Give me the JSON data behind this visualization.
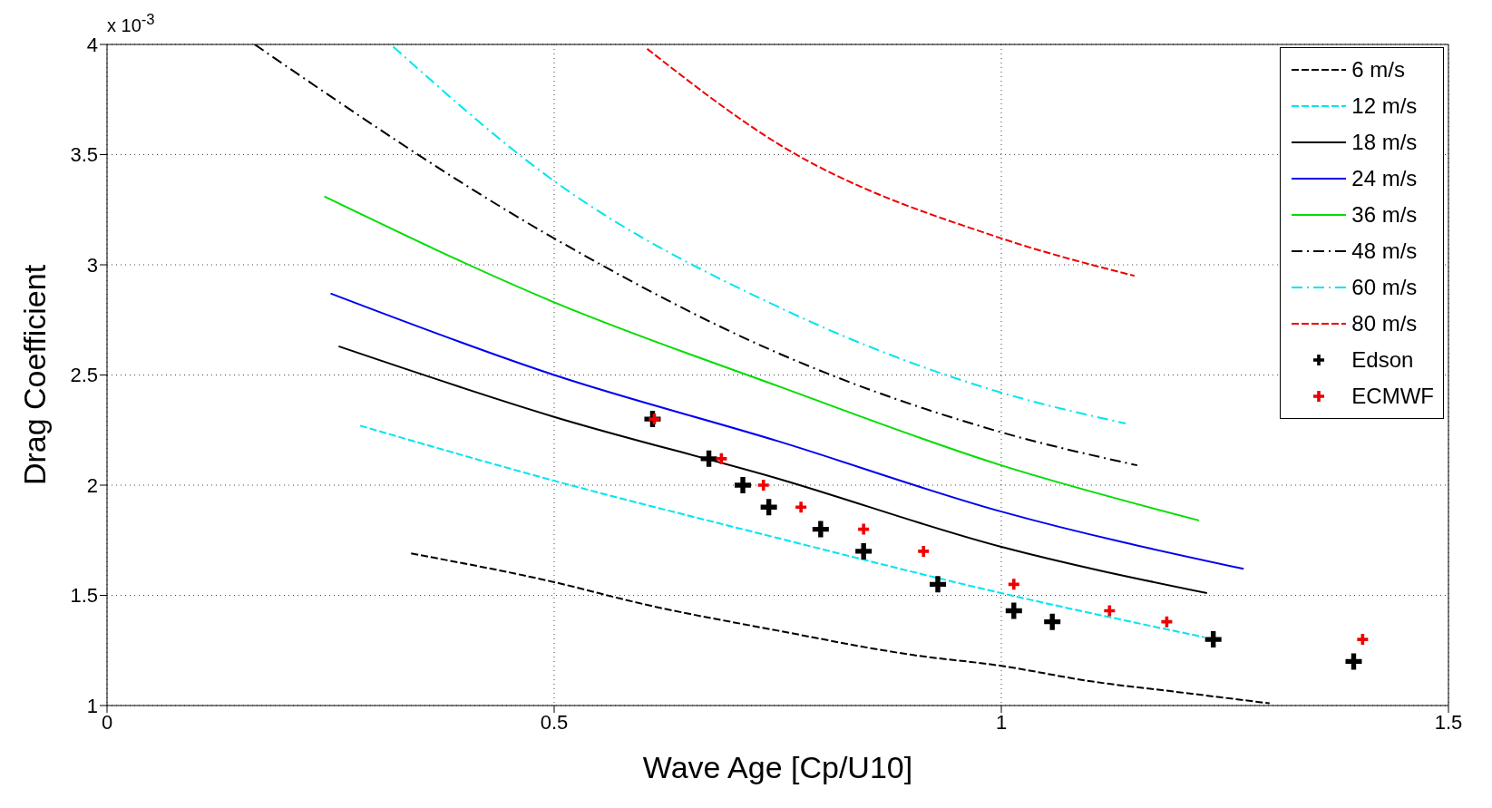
{
  "chart_data": {
    "type": "line",
    "xlabel": "Wave Age [Cp/U10]",
    "ylabel": "Drag Coefficient",
    "annotations": [
      "x 10$^{-3}$"
    ],
    "xlim": [
      0,
      1.5
    ],
    "xticks": [
      0,
      0.5,
      1,
      1.5
    ],
    "ylim": [
      1,
      4
    ],
    "yticks": [
      1,
      1.5,
      2,
      2.5,
      3,
      3.5,
      4
    ],
    "grid": true,
    "legend": "top right",
    "marker": "none",
    "series": [
      {
        "name": "6 m/s",
        "color": "#000000",
        "line_style": "dashed",
        "x": [
          0.34,
          0.5,
          0.6,
          0.75,
          0.9,
          1.0,
          1.1,
          1.2,
          1.3
        ],
        "values": [
          1.69,
          1.56,
          1.46,
          1.34,
          1.23,
          1.18,
          1.11,
          1.06,
          1.01
        ]
      },
      {
        "name": "12 m/s",
        "color": "#00e5ee",
        "line_style": "dashed",
        "x": [
          0.283,
          0.5,
          0.75,
          1.0,
          1.227
        ],
        "values": [
          2.27,
          2.02,
          1.76,
          1.51,
          1.31
        ]
      },
      {
        "name": "18 m/s",
        "color": "#000000",
        "line_style": "solid",
        "x": [
          0.259,
          0.5,
          0.75,
          1.0,
          1.23
        ],
        "values": [
          2.63,
          2.31,
          2.03,
          1.72,
          1.51
        ]
      },
      {
        "name": "24 m/s",
        "color": "#0000ee",
        "line_style": "solid",
        "x": [
          0.25,
          0.5,
          0.75,
          1.0,
          1.271
        ],
        "values": [
          2.87,
          2.5,
          2.2,
          1.88,
          1.62
        ]
      },
      {
        "name": "36 m/s",
        "color": "#00dd00",
        "line_style": "solid",
        "x": [
          0.243,
          0.5,
          0.75,
          1.0,
          1.221
        ],
        "values": [
          3.31,
          2.83,
          2.45,
          2.09,
          1.84
        ]
      },
      {
        "name": "48 m/s",
        "color": "#000000",
        "line_style": "dashdot",
        "x": [
          0.165,
          0.5,
          0.75,
          1.0,
          1.152
        ],
        "values": [
          4.0,
          3.12,
          2.6,
          2.24,
          2.09
        ]
      },
      {
        "name": "60 m/s",
        "color": "#00e5ee",
        "line_style": "dashdot",
        "x": [
          0.32,
          0.5,
          0.75,
          1.0,
          1.139
        ],
        "values": [
          3.99,
          3.38,
          2.81,
          2.42,
          2.28
        ]
      },
      {
        "name": "80 m/s",
        "color": "#ee0000",
        "line_style": "dashed",
        "x": [
          0.604,
          0.75,
          1.0,
          1.149
        ],
        "values": [
          3.98,
          3.55,
          3.12,
          2.95
        ]
      },
      {
        "name": "Edson",
        "type": "scatter",
        "marker": "cross",
        "color": "#000000",
        "x": [
          0.61,
          0.673,
          0.711,
          0.74,
          0.798,
          0.846,
          0.929,
          1.014,
          1.057,
          1.237,
          1.394
        ],
        "values": [
          2.3,
          2.12,
          2.0,
          1.9,
          1.8,
          1.7,
          1.55,
          1.43,
          1.38,
          1.3,
          1.2
        ]
      },
      {
        "name": "ECMWF",
        "type": "scatter",
        "marker": "cross",
        "color": "#ee0000",
        "x": [
          0.612,
          0.687,
          0.734,
          0.776,
          0.846,
          0.913,
          1.014,
          1.121,
          1.185,
          1.404
        ],
        "values": [
          2.3,
          2.12,
          2.0,
          1.9,
          1.8,
          1.7,
          1.55,
          1.43,
          1.38,
          1.3
        ]
      }
    ]
  }
}
